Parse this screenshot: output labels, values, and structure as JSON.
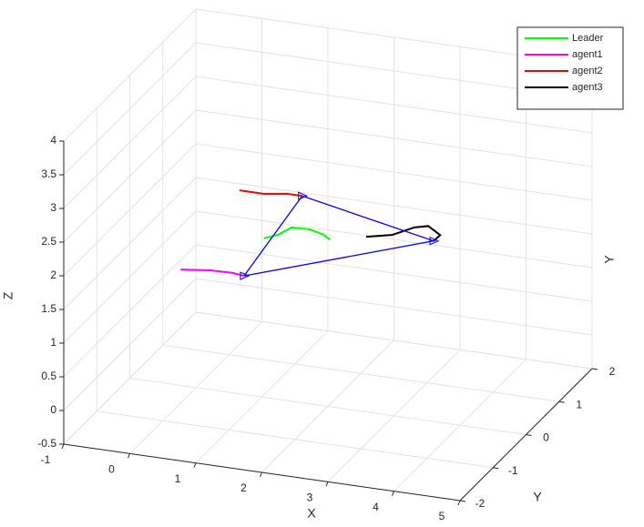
{
  "chart_data": {
    "type": "line3d",
    "xlabel": "X",
    "ylabel": "Y",
    "zlabel": "Z",
    "annotations": [
      {
        "text": "Y"
      }
    ],
    "xlim": [
      -1,
      5
    ],
    "ylim": [
      -2,
      2
    ],
    "zlim": [
      -0.5,
      4
    ],
    "xticks": [
      -1,
      0,
      1,
      2,
      3,
      4,
      5
    ],
    "yticks": [
      -2,
      -1,
      0,
      1,
      2
    ],
    "zticks": [
      -0.5,
      0,
      0.5,
      1,
      1.5,
      2,
      2.5,
      3,
      3.5,
      4
    ],
    "grid": true,
    "legend": "northeast",
    "series": [
      {
        "name": "Leader",
        "color": "#00ff00",
        "x": [
          1.53,
          1.74,
          1.95,
          2.22,
          2.43,
          2.53
        ],
        "y": [
          -1,
          -1,
          -1,
          -1,
          -1,
          -1
        ],
        "z": [
          2.42,
          2.5,
          2.64,
          2.65,
          2.6,
          2.54
        ]
      },
      {
        "name": "agent1",
        "color": "#ff00ff",
        "x": [
          0.27,
          0.71,
          1.05,
          1.23
        ],
        "y": [
          -1,
          -1,
          -1,
          -1
        ],
        "z": [
          1.78,
          1.83,
          1.84,
          1.82
        ]
      },
      {
        "name": "agent2",
        "color": "#ff0000",
        "x": [
          1.16,
          1.53,
          1.88,
          2.11
        ],
        "y": [
          -1,
          -1,
          -1,
          -1
        ],
        "z": [
          3.08,
          3.08,
          3.13,
          3.13
        ]
      },
      {
        "name": "agent3",
        "color": "#000000",
        "x": [
          3.08,
          3.47,
          3.81,
          4.02,
          4.2,
          4.1
        ],
        "y": [
          -1,
          -1,
          -1,
          -1,
          -1,
          -1
        ],
        "z": [
          2.66,
          2.74,
          2.9,
          2.95,
          2.84,
          2.74
        ]
      }
    ],
    "formation": {
      "color": "#0000ff",
      "x": [
        1.23,
        2.11,
        4.1,
        1.23
      ],
      "y": [
        -1,
        -1,
        -1,
        -1
      ],
      "z": [
        1.82,
        3.13,
        2.74,
        1.82
      ]
    }
  }
}
